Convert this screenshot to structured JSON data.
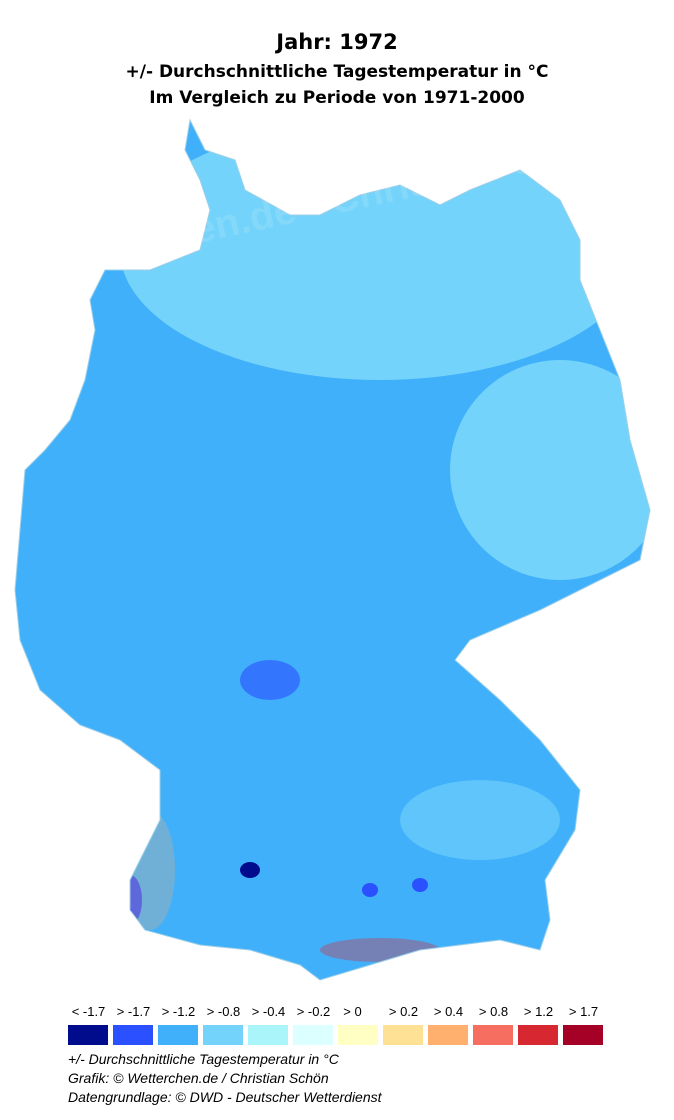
{
  "title": {
    "line1": "Jahr: 1972",
    "line2": "+/- Durchschnittliche Tagestemperatur in °C",
    "line3": "Im Vergleich zu Periode von 1971-2000"
  },
  "map": {
    "region": "Germany",
    "dominant_colors": [
      "#73d3fa",
      "#41b0fa",
      "#2a50ff"
    ],
    "watermark": "Wetterchen.de - Christian Schön"
  },
  "legend": {
    "items": [
      {
        "label": "< -1.7",
        "color": "#000c8c"
      },
      {
        "label": "> -1.7",
        "color": "#2a50ff"
      },
      {
        "label": "> -1.2",
        "color": "#41b0fa"
      },
      {
        "label": "> -0.8",
        "color": "#73d3fa"
      },
      {
        "label": "> -0.4",
        "color": "#aaf5fa"
      },
      {
        "label": "> -0.2",
        "color": "#dcffff"
      },
      {
        "label": "> 0",
        "color": "#ffffc3"
      },
      {
        "label": "> 0.2",
        "color": "#ffe196"
      },
      {
        "label": "> 0.4",
        "color": "#ffaf6e"
      },
      {
        "label": "> 0.8",
        "color": "#f56e5f"
      },
      {
        "label": "> 1.2",
        "color": "#d72832"
      },
      {
        "label": "> 1.7",
        "color": "#a50026"
      }
    ]
  },
  "footer": {
    "line1": "+/- Durchschnittliche Tagestemperatur in °C",
    "line2": "Grafik: © Wetterchen.de / Christian Schön",
    "line3": "Datengrundlage: © DWD - Deutscher Wetterdienst"
  }
}
